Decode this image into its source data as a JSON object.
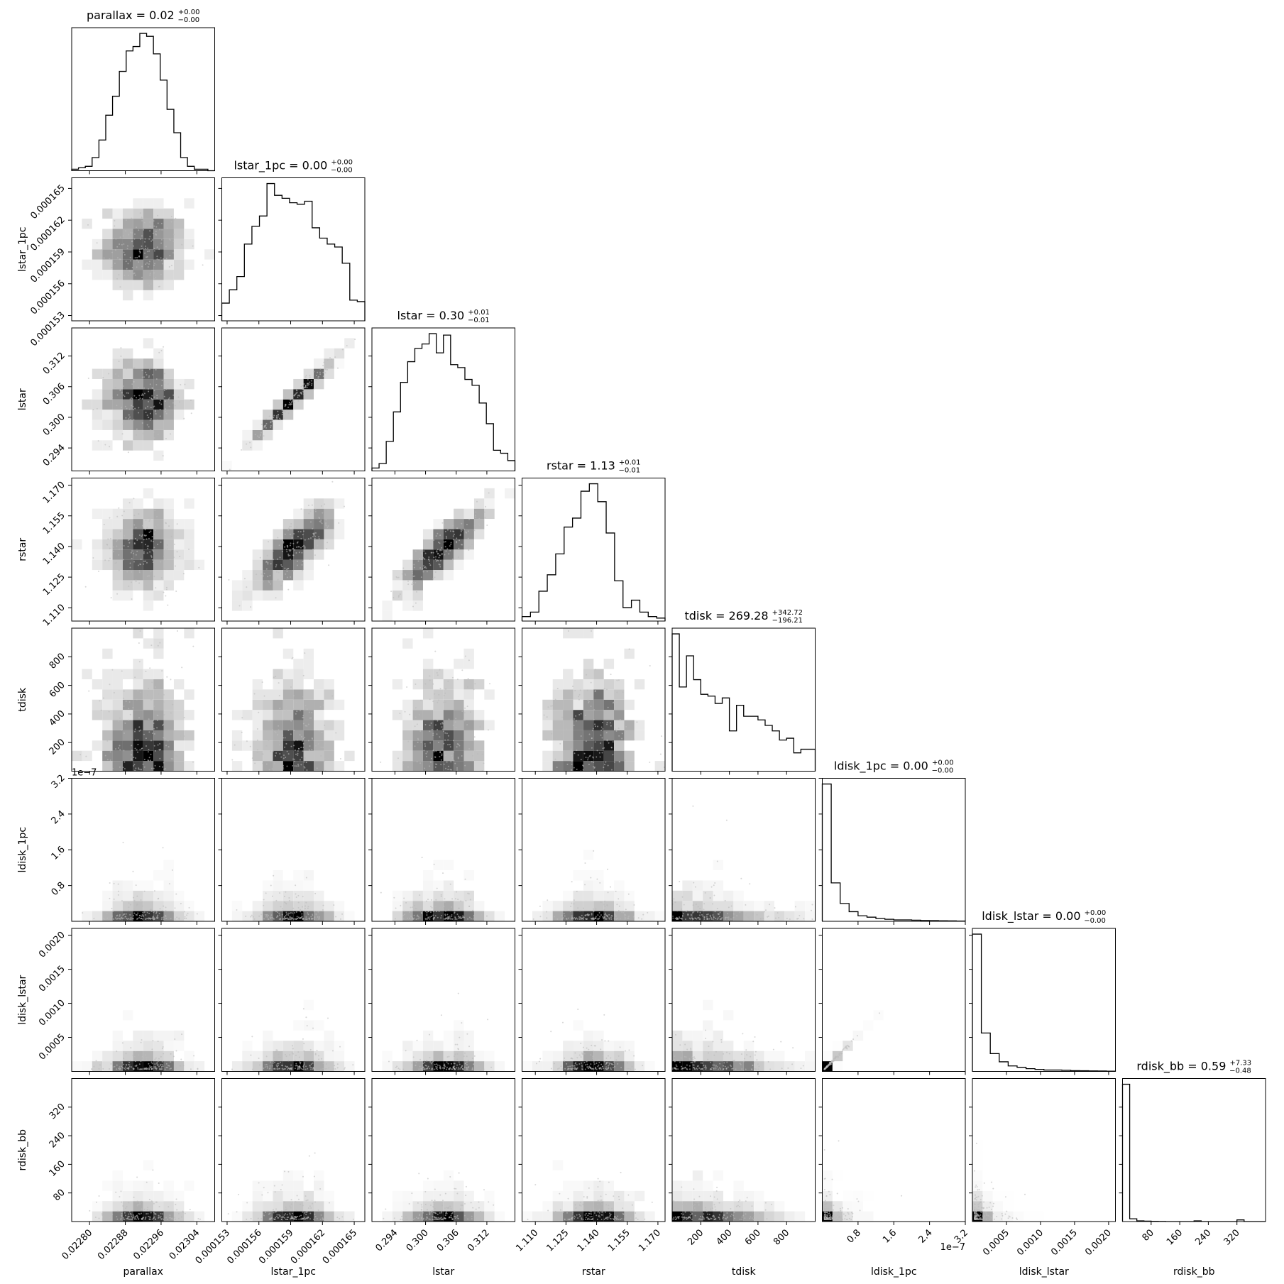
{
  "chart_data": {
    "type": "corner",
    "parameters": [
      {
        "name": "parallax",
        "title": "parallax = 0.02",
        "sup": "+0.00",
        "sub": "−0.00",
        "range": [
          0.02276,
          0.02308
        ],
        "ticks": [
          0.0228,
          0.02288,
          0.02296,
          0.02304
        ],
        "tick_labels": [
          "0.02280",
          "0.02288",
          "0.02296",
          "0.02304"
        ],
        "hist": [
          1,
          2,
          3,
          9,
          21,
          38,
          51,
          68,
          82,
          85,
          94,
          92,
          80,
          62,
          42,
          26,
          9,
          3,
          1,
          1,
          0
        ]
      },
      {
        "name": "lstar_1pc",
        "title": "lstar_1pc = 0.00",
        "sup": "+0.00",
        "sub": "−0.00",
        "range": [
          0.0001525,
          0.000166
        ],
        "ticks": [
          0.000153,
          0.000156,
          0.000159,
          0.000162,
          0.000165
        ],
        "tick_labels": [
          "0.000153",
          "0.000156",
          "0.000159",
          "0.000162",
          "0.000165"
        ],
        "hist": [
          12,
          21,
          30,
          52,
          64,
          71,
          93,
          85,
          83,
          80,
          79,
          81,
          63,
          56,
          52,
          50,
          39,
          14,
          13
        ]
      },
      {
        "name": "lstar",
        "title": "lstar = 0.30",
        "sup": "+0.01",
        "sub": "−0.01",
        "range": [
          0.2895,
          0.3175
        ],
        "ticks": [
          0.294,
          0.3,
          0.306,
          0.312
        ],
        "tick_labels": [
          "0.294",
          "0.300",
          "0.306",
          "0.312"
        ],
        "hist": [
          2,
          5,
          20,
          40,
          60,
          74,
          83,
          86,
          93,
          80,
          92,
          72,
          70,
          62,
          58,
          46,
          32,
          14,
          12,
          7
        ]
      },
      {
        "name": "rstar",
        "title": "rstar = 1.13",
        "sup": "+0.01",
        "sub": "−0.01",
        "range": [
          1.1035,
          1.1735
        ],
        "ticks": [
          1.11,
          1.125,
          1.14,
          1.155,
          1.17
        ],
        "tick_labels": [
          "1.110",
          "1.125",
          "1.140",
          "1.155",
          "1.170"
        ],
        "hist": [
          3,
          6,
          20,
          31,
          45,
          63,
          69,
          87,
          92,
          80,
          59,
          27,
          9,
          14,
          6,
          3,
          2
        ]
      },
      {
        "name": "tdisk",
        "title": "tdisk = 269.28",
        "sup": "+342.72",
        "sub": "−196.21",
        "range": [
          0,
          1000
        ],
        "ticks": [
          200,
          400,
          600,
          800
        ],
        "tick_labels": [
          "200",
          "400",
          "600",
          "800"
        ],
        "hist": [
          75,
          46,
          63,
          50,
          42,
          41,
          37,
          40,
          22,
          36,
          30,
          30,
          28,
          25,
          22,
          17,
          18,
          10,
          12,
          12
        ]
      },
      {
        "name": "ldisk_1pc",
        "title": "ldisk_1pc = 0.00",
        "sup": "+0.00",
        "sub": "−0.00",
        "range": [
          0,
          3.2e-07
        ],
        "ticks": [
          8e-08,
          1.6e-07,
          2.4e-07,
          3.2e-07
        ],
        "tick_labels": [
          "0.8",
          "1.6",
          "2.4",
          "3.2"
        ],
        "offset": "1e−7",
        "hist": [
          100,
          28,
          13,
          7,
          4,
          3,
          2,
          1.5,
          1,
          1,
          0.8,
          0.6,
          0.5,
          0.4,
          0.3,
          0.2
        ]
      },
      {
        "name": "ldisk_lstar",
        "title": "ldisk_lstar = 0.00",
        "sup": "+0.00",
        "sub": "−0.00",
        "range": [
          0,
          0.0021
        ],
        "ticks": [
          0.0005,
          0.001,
          0.0015,
          0.002
        ],
        "tick_labels": [
          "0.0005",
          "0.0010",
          "0.0015",
          "0.0020"
        ],
        "hist": [
          100,
          28,
          13,
          7,
          4,
          3,
          2,
          1.5,
          1,
          1,
          0.8,
          0.6,
          0.5,
          0.4,
          0.3,
          0.2
        ]
      },
      {
        "name": "rdisk_bb",
        "title": "rdisk_bb = 0.59",
        "sup": "+7.33",
        "sub": "−0.48",
        "range": [
          0,
          400
        ],
        "ticks": [
          80,
          160,
          240,
          320
        ],
        "tick_labels": [
          "80",
          "160",
          "240",
          "320"
        ],
        "hist": [
          100,
          2,
          0.5,
          0.3,
          0.2,
          0.1,
          0,
          0,
          0,
          0,
          0.5,
          0,
          0,
          0,
          0,
          0,
          1.2,
          0,
          0,
          0
        ]
      }
    ],
    "y_ticks": {
      "lstar_1pc": {
        "ticks": [
          0.000153,
          0.000156,
          0.000159,
          0.000162,
          0.000165
        ],
        "labels": [
          "0.000153",
          "0.000156",
          "0.000159",
          "0.000162",
          "0.000165"
        ]
      },
      "lstar": {
        "ticks": [
          0.294,
          0.3,
          0.306,
          0.312
        ],
        "labels": [
          "0.294",
          "0.300",
          "0.306",
          "0.312"
        ]
      },
      "rstar": {
        "ticks": [
          1.11,
          1.125,
          1.14,
          1.155,
          1.17
        ],
        "labels": [
          "1.110",
          "1.125",
          "1.140",
          "1.155",
          "1.170"
        ]
      },
      "tdisk": {
        "ticks": [
          200,
          400,
          600,
          800
        ],
        "labels": [
          "200",
          "400",
          "600",
          "800"
        ]
      },
      "ldisk_1pc": {
        "ticks": [
          8e-08,
          1.6e-07,
          2.4e-07,
          3.2e-07
        ],
        "labels": [
          "0.8",
          "1.6",
          "2.4",
          "3.2"
        ],
        "offset": "1e−7"
      },
      "ldisk_lstar": {
        "ticks": [
          0.0005,
          0.001,
          0.0015,
          0.002
        ],
        "labels": [
          "0.0005",
          "0.0010",
          "0.0015",
          "0.0020"
        ]
      },
      "rdisk_bb": {
        "ticks": [
          80,
          160,
          240,
          320
        ],
        "labels": [
          "80",
          "160",
          "240",
          "320"
        ]
      }
    },
    "correlations": {
      "lstar|lstar_1pc": 0.98,
      "rstar|lstar_1pc": 0.8,
      "rstar|lstar": 0.85,
      "ldisk_lstar|ldisk_1pc": 0.999
    },
    "colors": {
      "line": "#000000",
      "background": "#ffffff",
      "density": "#000000"
    }
  }
}
